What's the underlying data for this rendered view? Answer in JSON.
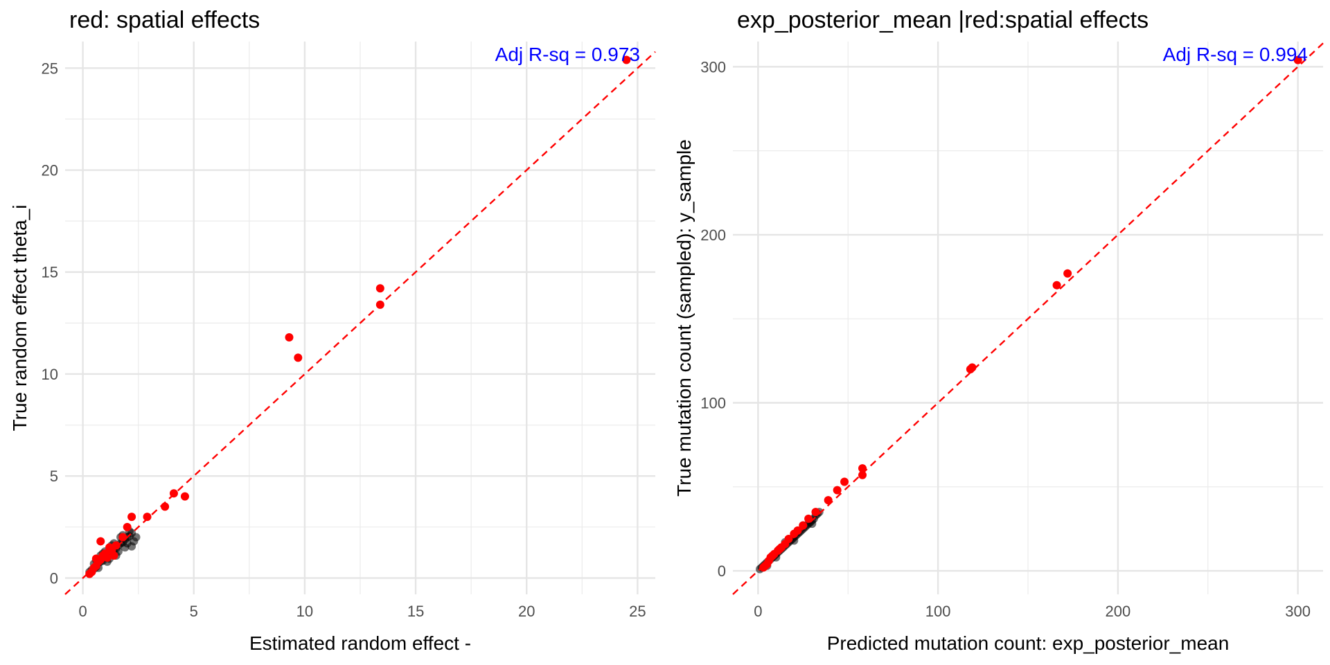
{
  "chart_data": [
    {
      "type": "scatter",
      "title": "red: spatial effects",
      "xlabel": "Estimated random effect -",
      "ylabel": "True random effect theta_i",
      "xlim": [
        -0.8,
        25.8
      ],
      "ylim": [
        -0.8,
        26.3
      ],
      "x_ticks": [
        0,
        5,
        10,
        15,
        20,
        25
      ],
      "y_ticks": [
        0,
        5,
        10,
        15,
        20,
        25
      ],
      "grid": true,
      "annotation": "Adj R-sq = 0.973",
      "annotation_color": "#0000ff",
      "reference_line": {
        "type": "identity",
        "style": "dashed",
        "color": "#ff0000"
      },
      "series": [
        {
          "role": "background points",
          "color": "#000000",
          "points": [
            [
              0.3,
              0.3
            ],
            [
              0.4,
              0.4
            ],
            [
              0.5,
              0.45
            ],
            [
              0.6,
              0.55
            ],
            [
              0.7,
              0.75
            ],
            [
              0.8,
              0.8
            ],
            [
              0.9,
              0.85
            ],
            [
              1.0,
              1.0
            ],
            [
              1.1,
              1.05
            ],
            [
              1.2,
              1.2
            ],
            [
              1.3,
              1.35
            ],
            [
              1.4,
              1.4
            ],
            [
              1.5,
              1.45
            ],
            [
              1.6,
              1.6
            ],
            [
              1.7,
              1.7
            ],
            [
              1.8,
              1.75
            ],
            [
              1.9,
              1.9
            ],
            [
              2.0,
              2.0
            ],
            [
              2.1,
              2.05
            ],
            [
              2.2,
              2.2
            ],
            [
              0.5,
              0.7
            ],
            [
              0.7,
              0.5
            ],
            [
              0.9,
              1.2
            ],
            [
              1.1,
              0.8
            ],
            [
              1.3,
              1.6
            ],
            [
              1.5,
              1.1
            ],
            [
              1.7,
              2.0
            ],
            [
              1.9,
              1.5
            ],
            [
              2.1,
              2.3
            ],
            [
              2.3,
              1.8
            ],
            [
              0.6,
              0.9
            ],
            [
              0.8,
              1.1
            ],
            [
              1.0,
              1.3
            ],
            [
              1.2,
              0.95
            ],
            [
              1.4,
              1.7
            ],
            [
              1.6,
              1.3
            ],
            [
              1.8,
              2.1
            ],
            [
              2.0,
              1.7
            ],
            [
              2.2,
              1.55
            ],
            [
              2.4,
              2.0
            ]
          ]
        },
        {
          "role": "highlighted points",
          "color": "#ff0000",
          "points": [
            [
              24.5,
              25.4
            ],
            [
              13.4,
              14.2
            ],
            [
              13.4,
              13.4
            ],
            [
              9.3,
              11.8
            ],
            [
              9.7,
              10.8
            ],
            [
              4.6,
              4.0
            ],
            [
              4.1,
              4.15
            ],
            [
              3.7,
              3.5
            ],
            [
              2.9,
              3.0
            ],
            [
              2.2,
              3.0
            ],
            [
              2.0,
              2.5
            ],
            [
              1.8,
              2.0
            ],
            [
              1.5,
              1.6
            ],
            [
              1.3,
              1.35
            ],
            [
              1.2,
              1.5
            ],
            [
              1.0,
              1.2
            ],
            [
              0.9,
              1.1
            ],
            [
              0.8,
              1.8
            ],
            [
              0.8,
              0.9
            ],
            [
              0.7,
              0.8
            ],
            [
              0.6,
              0.6
            ],
            [
              0.5,
              0.5
            ],
            [
              0.4,
              0.3
            ],
            [
              0.3,
              0.2
            ],
            [
              1.1,
              1.0
            ],
            [
              0.6,
              0.95
            ],
            [
              1.4,
              1.1
            ]
          ]
        }
      ]
    },
    {
      "type": "scatter",
      "title": "exp_posterior_mean |red:spatial effects",
      "xlabel": "Predicted mutation count: exp_posterior_mean",
      "ylabel": "True mutation count (sampled): y_sample",
      "xlim": [
        -14,
        314
      ],
      "ylim": [
        -14,
        315
      ],
      "x_ticks": [
        0,
        100,
        200,
        300
      ],
      "y_ticks": [
        0,
        100,
        200,
        300
      ],
      "grid": true,
      "annotation": "Adj R-sq = 0.994",
      "annotation_color": "#0000ff",
      "reference_line": {
        "type": "identity",
        "style": "dashed",
        "color": "#ff0000"
      },
      "series": [
        {
          "role": "background points",
          "color": "#000000",
          "points": [
            [
              1,
              1
            ],
            [
              2,
              2
            ],
            [
              3,
              3
            ],
            [
              4,
              4
            ],
            [
              5,
              5
            ],
            [
              6,
              6
            ],
            [
              7,
              7
            ],
            [
              8,
              8
            ],
            [
              9,
              9
            ],
            [
              10,
              10
            ],
            [
              11,
              11
            ],
            [
              12,
              12
            ],
            [
              13,
              13
            ],
            [
              14,
              14
            ],
            [
              15,
              15
            ],
            [
              16,
              16
            ],
            [
              17,
              17
            ],
            [
              18,
              18
            ],
            [
              19,
              19
            ],
            [
              20,
              20
            ],
            [
              21,
              21
            ],
            [
              22,
              22
            ],
            [
              23,
              23
            ],
            [
              24,
              24
            ],
            [
              25,
              25
            ],
            [
              26,
              26
            ],
            [
              27,
              27
            ],
            [
              28,
              28
            ],
            [
              29,
              29
            ],
            [
              30,
              30
            ],
            [
              31,
              31
            ],
            [
              32,
              33
            ],
            [
              33,
              34
            ],
            [
              34,
              35
            ],
            [
              5,
              3
            ],
            [
              10,
              8
            ],
            [
              15,
              17
            ],
            [
              20,
              18
            ],
            [
              25,
              27
            ],
            [
              30,
              28
            ]
          ]
        },
        {
          "role": "highlighted points",
          "color": "#ff0000",
          "points": [
            [
              300,
              304
            ],
            [
              172,
              177
            ],
            [
              166,
              170
            ],
            [
              119,
              121
            ],
            [
              118,
              120
            ],
            [
              58,
              61
            ],
            [
              58,
              57
            ],
            [
              48,
              53
            ],
            [
              44,
              48
            ],
            [
              39,
              42
            ],
            [
              32,
              35
            ],
            [
              28,
              31
            ],
            [
              25,
              27
            ],
            [
              22,
              24
            ],
            [
              20,
              22
            ],
            [
              17,
              19
            ],
            [
              15,
              16
            ],
            [
              13,
              14
            ],
            [
              11,
              12
            ],
            [
              9,
              10
            ],
            [
              7,
              8
            ],
            [
              6,
              6
            ],
            [
              5,
              4
            ],
            [
              4,
              3
            ],
            [
              8,
              9
            ],
            [
              12,
              13
            ],
            [
              3,
              2
            ]
          ]
        }
      ]
    }
  ]
}
